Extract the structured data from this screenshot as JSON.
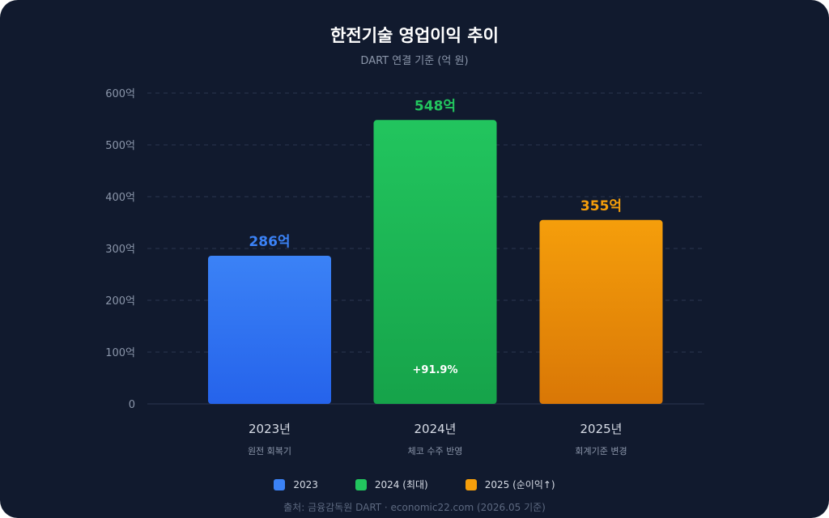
{
  "chart_data": {
    "type": "bar",
    "title": "한전기술 영업이익 추이",
    "subtitle": "DART 연결 기준 (억 원)",
    "categories": [
      "2023년",
      "2024년",
      "2025년"
    ],
    "category_notes": [
      "원전 회복기",
      "체코 수주 반영",
      "회계기준 변경"
    ],
    "values": [
      286,
      548,
      355
    ],
    "value_labels": [
      "286억",
      "548억",
      "355억"
    ],
    "ylim": [
      0,
      600
    ],
    "y_ticks": [
      0,
      100,
      200,
      300,
      400,
      500,
      600
    ],
    "y_tick_labels": [
      "0",
      "100억",
      "200억",
      "300억",
      "400억",
      "500억",
      "600억"
    ],
    "annotation": {
      "category": "2024년",
      "text": "+91.9%"
    },
    "grid": true,
    "legend_position": "bottom",
    "legend": [
      "2023",
      "2024 (최대)",
      "2025 (순이익↑)"
    ],
    "colors": {
      "top": [
        "#3b82f6",
        "#22c55e",
        "#f59e0b"
      ],
      "bottom": [
        "#2563eb",
        "#16a34a",
        "#d97706"
      ],
      "labels": [
        "#3b82f6",
        "#22c55e",
        "#f59e0b"
      ]
    }
  },
  "source": "출처: 금융감독원 DART · economic22.com (2026.05 기준)"
}
